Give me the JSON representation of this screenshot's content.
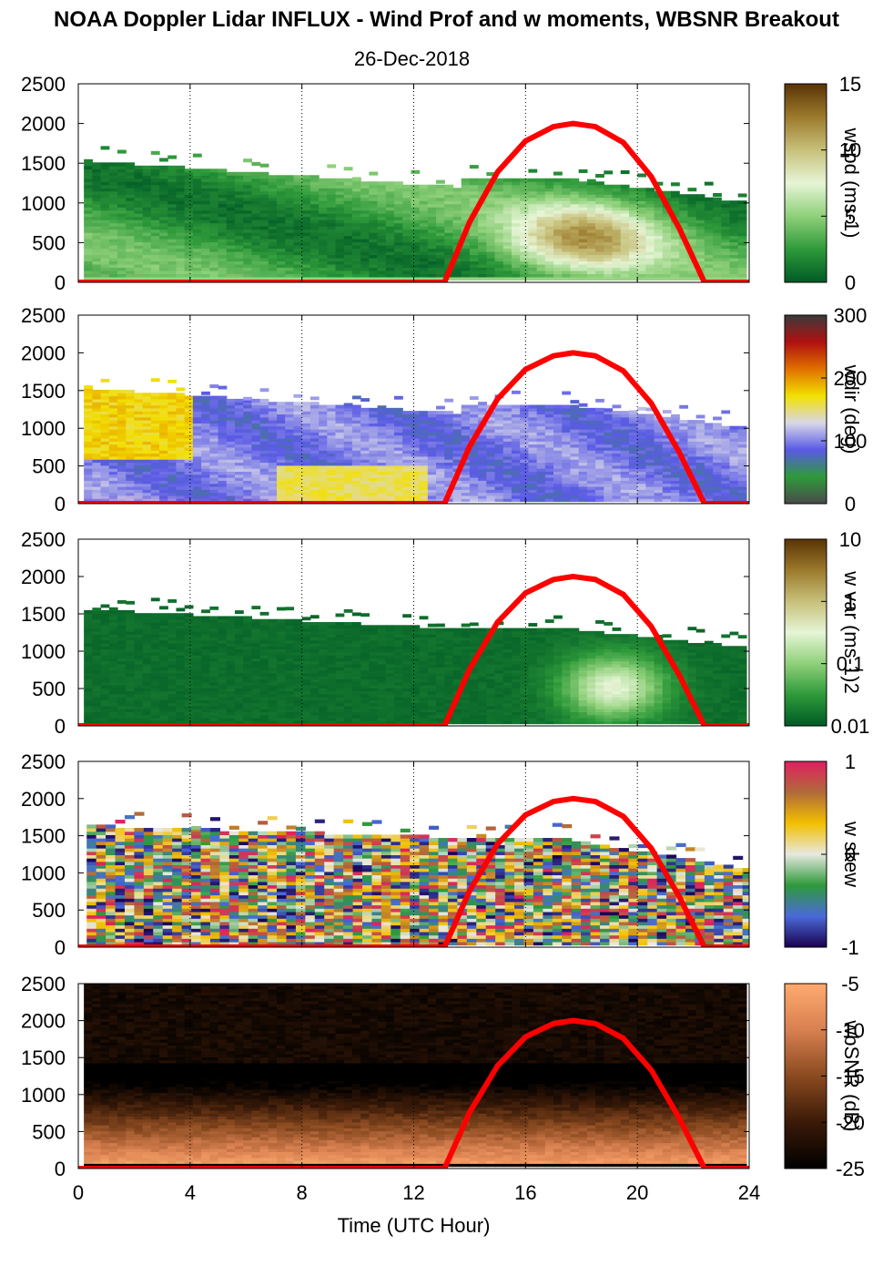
{
  "title": "NOAA Doppler Lidar INFLUX - Wind Prof and w moments, WBSNR Breakout",
  "date": "26-Dec-2018",
  "chart_data": {
    "type": "heatmap",
    "xlabel": "Time (UTC Hour)",
    "xlim": [
      0,
      24
    ],
    "xticks": [
      0,
      4,
      8,
      12,
      16,
      20,
      24
    ],
    "ylim": [
      0,
      2500
    ],
    "yticks": [
      0,
      500,
      1000,
      1500,
      2000,
      2500
    ],
    "overlay_curve": {
      "color": "#ff0000",
      "points": [
        [
          0,
          0
        ],
        [
          13.1,
          0
        ],
        [
          14,
          760
        ],
        [
          15,
          1390
        ],
        [
          16,
          1780
        ],
        [
          17,
          1960
        ],
        [
          17.7,
          2000
        ],
        [
          18.5,
          1960
        ],
        [
          19.5,
          1760
        ],
        [
          20.5,
          1330
        ],
        [
          21.5,
          680
        ],
        [
          22.4,
          0
        ],
        [
          24,
          0
        ]
      ]
    },
    "panels": [
      {
        "id": "wspd",
        "colorbar_label": "wspd (ms-1)",
        "colorbar_ticks": [
          "0",
          "5",
          "10",
          "15"
        ],
        "colorbar_range": [
          0,
          15
        ],
        "colorbar_colors": [
          "#005a26",
          "#2e9a3a",
          "#8fd07a",
          "#e6f5d6",
          "#c7c07a",
          "#9c7a2c",
          "#5a3405"
        ],
        "top_rows": [
          {
            "x": [
              0,
              13.5
            ],
            "y": [
              1480,
              1250
            ]
          },
          {
            "x": [
              13.5,
              17
            ],
            "y": [
              1250,
              1380
            ]
          },
          {
            "x": [
              17,
              24
            ],
            "y": [
              1380,
              1050
            ]
          }
        ],
        "description_levels": [
          {
            "x": [
              0,
              12.5
            ],
            "y": [
              0,
              1500
            ],
            "value": 3
          },
          {
            "x": [
              13,
              22
            ],
            "y": [
              200,
              1000
            ],
            "value": 10
          }
        ]
      },
      {
        "id": "wdir",
        "colorbar_label": "wdir (deg)",
        "colorbar_ticks": [
          "0",
          "100",
          "200",
          "300"
        ],
        "colorbar_range": [
          0,
          360
        ],
        "colorbar_colors": [
          "#4a4a4a",
          "#2e9a3a",
          "#5a5ae6",
          "#d8d8e8",
          "#f2e000",
          "#e07000",
          "#b01010",
          "#3a3a3a"
        ],
        "description_levels": [
          {
            "x": [
              0,
              4
            ],
            "y": [
              600,
              1500
            ],
            "value": 220
          },
          {
            "x": [
              4,
              24
            ],
            "y": [
              0,
              1200
            ],
            "value": 120
          }
        ]
      },
      {
        "id": "wvar",
        "colorbar_label": "w var (ms-1)2",
        "colorbar_ticks": [
          "0.01",
          "0.1",
          "1",
          "10"
        ],
        "colorbar_range": [
          0.01,
          10
        ],
        "colorbar_scale": "log",
        "colorbar_colors": [
          "#005a26",
          "#2e9a3a",
          "#8fd07a",
          "#e6f5d6",
          "#c7c07a",
          "#9c7a2c",
          "#5a3405"
        ]
      },
      {
        "id": "wskew",
        "colorbar_label": "w skew",
        "colorbar_ticks": [
          "-1",
          "0",
          "1"
        ],
        "colorbar_range": [
          -1,
          1
        ],
        "colorbar_colors": [
          "#1a0050",
          "#4a6ad8",
          "#2e9a3a",
          "#e8e8e0",
          "#f2c000",
          "#b06a3a",
          "#e02060"
        ]
      },
      {
        "id": "wbsnr",
        "colorbar_label": "wbSNR (dB)",
        "colorbar_ticks": [
          "-25",
          "-20",
          "-15",
          "-10",
          "-5"
        ],
        "colorbar_range": [
          -25,
          -5
        ],
        "colorbar_colors": [
          "#000000",
          "#3a1a08",
          "#8a4a20",
          "#d88050",
          "#ffaa70"
        ]
      }
    ]
  }
}
